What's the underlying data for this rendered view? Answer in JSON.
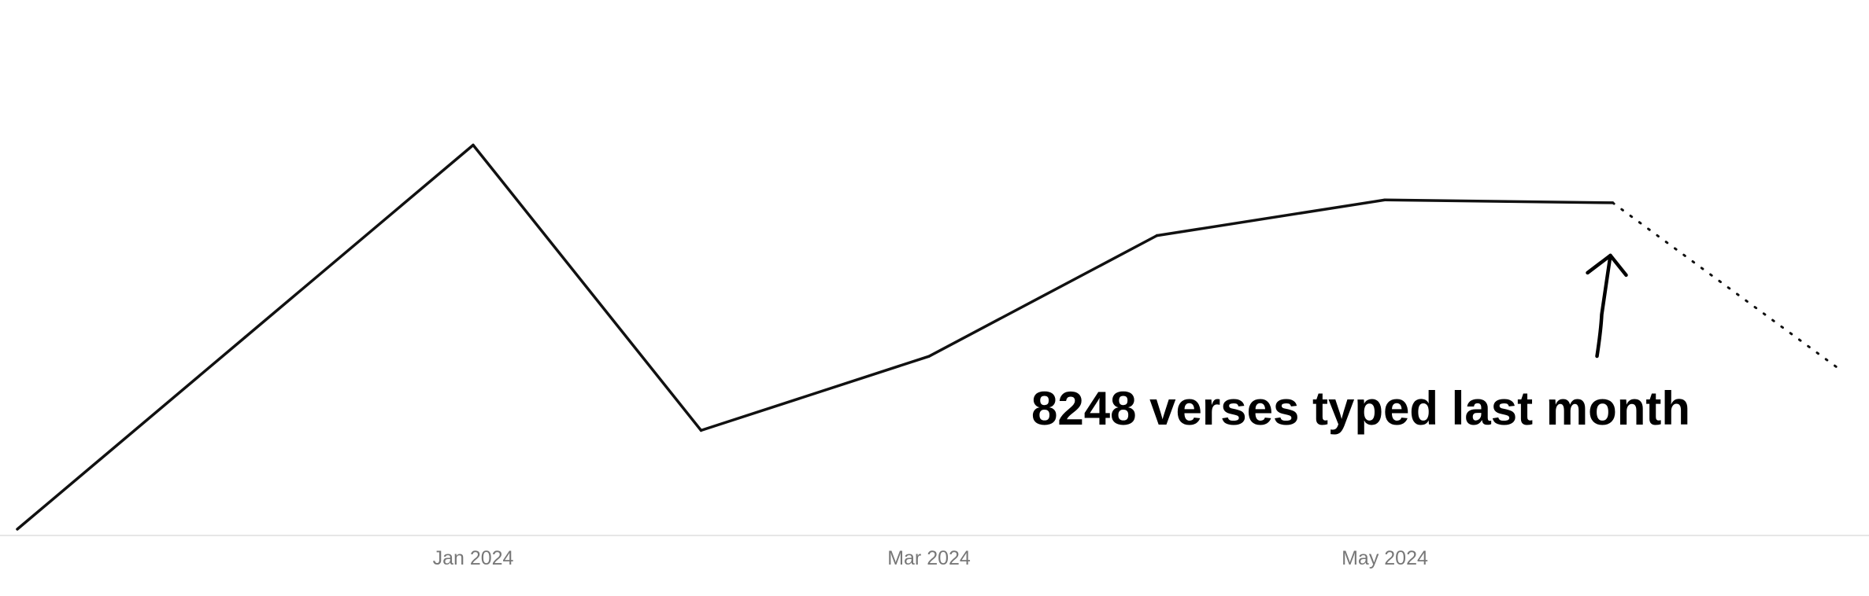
{
  "chart_data": {
    "type": "line",
    "x": [
      "2023-11",
      "2023-12",
      "2024-01",
      "2024-02",
      "2024-03",
      "2024-04",
      "2024-05",
      "2024-06",
      "2024-07"
    ],
    "series": [
      {
        "values": [
          2300,
          5800,
          9300,
          4100,
          5450,
          7650,
          8300,
          8248,
          5200
        ],
        "segments": [
          "solid",
          "solid",
          "solid",
          "solid",
          "solid",
          "solid",
          "solid",
          "dotted"
        ]
      }
    ],
    "x_tick_labels": [
      "Jan 2024",
      "Mar 2024",
      "May 2024"
    ],
    "x_tick_positions": [
      "2024-01",
      "2024-03",
      "2024-05"
    ],
    "ylim": [
      2200,
      11800
    ],
    "axes": {
      "y_visible": false,
      "x_baseline": true
    },
    "grid": false,
    "colors": {
      "line": "#111111",
      "tick_text": "#777777",
      "baseline": "#e6e6e6",
      "annotation": "#000000"
    },
    "annotation": {
      "text": "8248 verses typed last month",
      "target_x": "2024-06",
      "target_value": 8248,
      "arrow": true
    }
  }
}
